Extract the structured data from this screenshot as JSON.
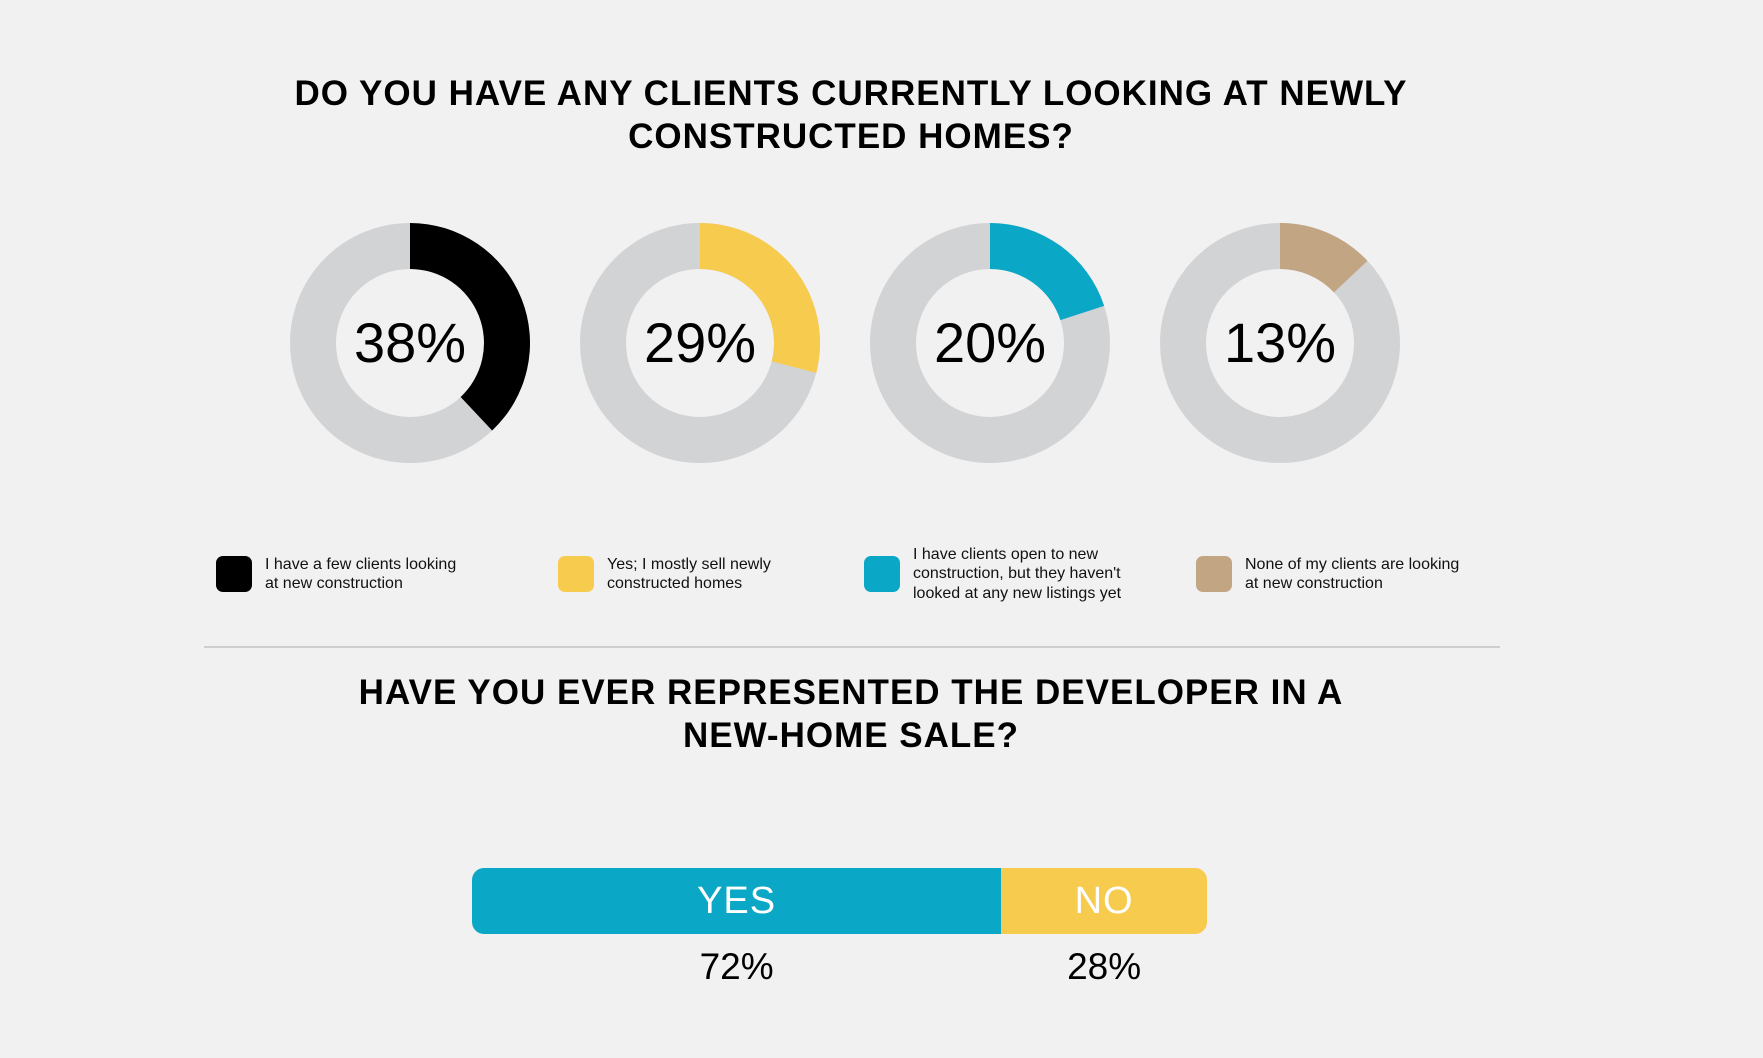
{
  "colors": {
    "background": "#f1f1f1",
    "track": "#d2d3d5",
    "black": "#000000",
    "yellow": "#f7cb4d",
    "teal": "#0aa8c6",
    "tan": "#c2a582"
  },
  "chart_data": [
    {
      "type": "pie",
      "title_lines": [
        "DO YOU HAVE ANY CLIENTS CURRENTLY LOOKING AT NEWLY",
        "CONSTRUCTED HOMES?"
      ],
      "series": [
        {
          "value": 38,
          "label": "38%",
          "color": "#000000",
          "legend_lines": [
            "I have a few clients looking",
            "at new construction"
          ]
        },
        {
          "value": 29,
          "label": "29%",
          "color": "#f7cb4d",
          "legend_lines": [
            "Yes; I mostly sell newly",
            "constructed homes"
          ]
        },
        {
          "value": 20,
          "label": "20%",
          "color": "#0aa8c6",
          "legend_lines": [
            "I have clients open to new",
            "construction, but they haven't",
            "looked at any new listings yet"
          ]
        },
        {
          "value": 13,
          "label": "13%",
          "color": "#c2a582",
          "legend_lines": [
            "None of my clients are looking",
            "at new construction"
          ]
        }
      ]
    },
    {
      "type": "bar",
      "title_lines": [
        "HAVE YOU EVER REPRESENTED THE DEVELOPER IN A",
        "NEW-HOME SALE?"
      ],
      "categories": [
        "YES",
        "NO"
      ],
      "values": [
        72,
        28
      ],
      "labels": [
        "72%",
        "28%"
      ],
      "colors": [
        "#0aa8c6",
        "#f7cb4d"
      ]
    }
  ]
}
